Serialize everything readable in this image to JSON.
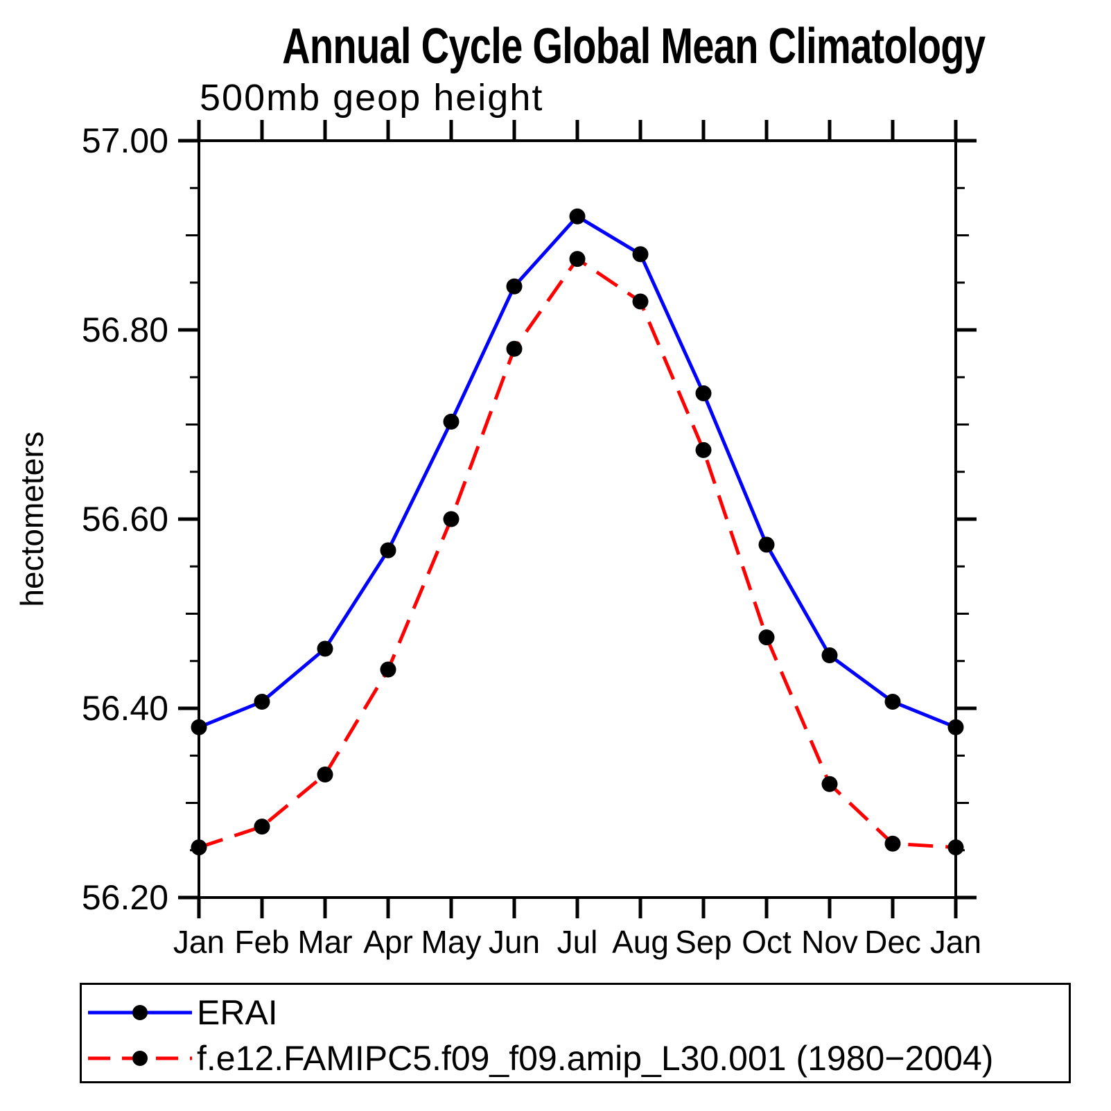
{
  "title": "Annual Cycle Global Mean Climatology",
  "subtitle": "500mb geop height",
  "legend": {
    "entries": [
      {
        "label": "ERAI"
      },
      {
        "label": "f.e12.FAMIPC5.f09_f09.amip_L30.001 (1980−2004)"
      }
    ]
  },
  "chart_data": {
    "type": "line",
    "title": "Annual Cycle Global Mean Climatology",
    "subtitle": "500mb geop height",
    "xlabel": "",
    "ylabel": "hectometers",
    "categories": [
      "Jan",
      "Feb",
      "Mar",
      "Apr",
      "May",
      "Jun",
      "Jul",
      "Aug",
      "Sep",
      "Oct",
      "Nov",
      "Dec",
      "Jan"
    ],
    "ylim": [
      56.2,
      57.0
    ],
    "ytick_values": [
      56.2,
      56.4,
      56.6,
      56.8,
      57.0
    ],
    "ytick_labels": [
      "56.20",
      "56.40",
      "56.60",
      "56.80",
      "57.00"
    ],
    "ytick_minor_step": 0.05,
    "grid": false,
    "legend_position": "bottom",
    "marker_color": "#000000",
    "series": [
      {
        "name": "ERAI",
        "color": "#0000ff",
        "style": "solid",
        "marker": "filled-circle",
        "values": [
          56.38,
          56.407,
          56.463,
          56.567,
          56.703,
          56.846,
          56.92,
          56.88,
          56.733,
          56.573,
          56.456,
          56.407,
          56.38
        ]
      },
      {
        "name": "f.e12.FAMIPC5.f09_f09.amip_L30.001 (1980−2004)",
        "color": "#ff0000",
        "style": "dashed",
        "marker": "filled-circle",
        "values": [
          56.253,
          56.275,
          56.33,
          56.441,
          56.6,
          56.78,
          56.875,
          56.83,
          56.673,
          56.475,
          56.32,
          56.257,
          56.253
        ]
      }
    ]
  }
}
